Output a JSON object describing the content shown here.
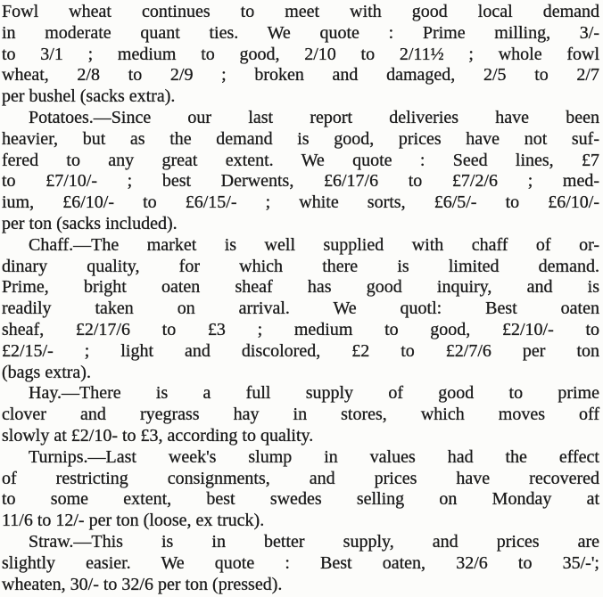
{
  "theme": {
    "paper": "#fcfcfa",
    "ink": "#1a1a1a"
  },
  "article": {
    "paragraphs": [
      {
        "topic": "Fowl wheat",
        "lines": [
          "Fowl wheat continues to meet with good local demand",
          "in moderate quant ties. We quote : Prime milling, 3/-",
          "to 3/1 ; medium to good, 2/10 to 2/11½ ; whole fowl",
          "wheat, 2/8 to 2/9 ; broken and damaged, 2/5 to 2/7",
          "per bushel (sacks extra)."
        ]
      },
      {
        "topic": "Potatoes",
        "lines": [
          "Potatoes.—Since our last report deliveries have been",
          "heavier, but as the demand is good, prices have not suf-",
          "fered to any great extent. We quote : Seed lines, £7",
          "to £7/10/- ; best Derwents, £6/17/6 to £7/2/6 ; med-",
          "ium, £6/10/- to £6/15/- ; white sorts, £6/5/- to £6/10/-",
          "per ton (sacks included)."
        ]
      },
      {
        "topic": "Chaff",
        "lines": [
          "Chaff.—The market is well supplied with chaff of or-",
          "dinary quality, for which there is limited demand.",
          "Prime, bright oaten sheaf has good inquiry, and is",
          "readily taken on arrival. We quotl: Best oaten",
          "sheaf, £2/17/6 to £3 ; medium to good, £2/10/- to",
          "£2/15/- ; light and discolored, £2 to £2/7/6 per ton",
          "(bags extra)."
        ]
      },
      {
        "topic": "Hay",
        "lines": [
          "Hay.—There is a full supply of good to prime",
          "clover and ryegrass hay in stores, which moves off",
          "slowly at £2/10- to £3, according to quality."
        ]
      },
      {
        "topic": "Turnips",
        "lines": [
          "Turnips.—Last week's slump in values had the effect",
          "of restricting consignments, and prices have recovered",
          "to some extent, best swedes selling on Monday at",
          "11/6 to 12/- per ton (loose, ex truck)."
        ]
      },
      {
        "topic": "Straw",
        "lines": [
          "Straw.—This is in better supply, and prices are",
          "slightly easier. We quote : Best oaten, 32/6 to 35/-';",
          "wheaten, 30/- to 32/6 per ton (pressed)."
        ]
      }
    ]
  }
}
